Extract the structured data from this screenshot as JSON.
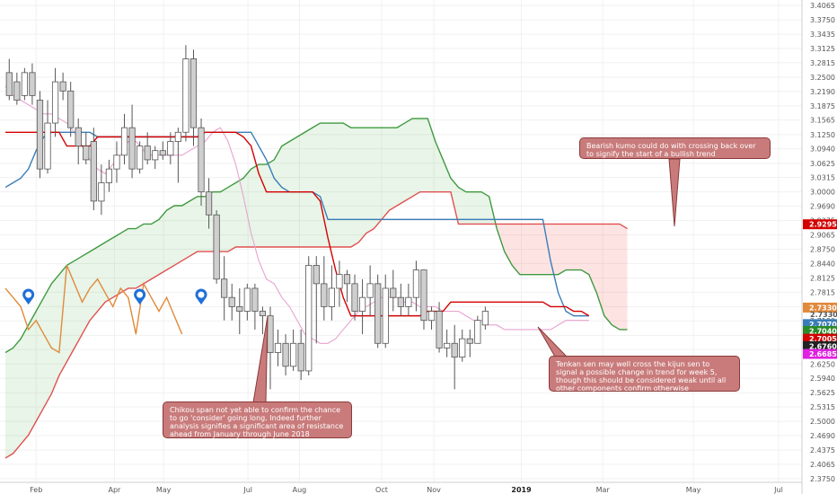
{
  "chart_data": {
    "type": "candlestick",
    "x_ticks": [
      "Feb",
      "Apr",
      "May",
      "Jul",
      "Aug",
      "Oct",
      "Nov",
      "2019",
      "Mar",
      "May",
      "Jul"
    ],
    "y_ticks": [
      "3.4065",
      "3.3750",
      "3.3435",
      "3.3125",
      "3.2815",
      "3.2500",
      "3.2190",
      "3.1875",
      "3.1565",
      "3.1250",
      "3.0940",
      "3.0625",
      "3.0315",
      "3.0000",
      "2.9690",
      "2.9375",
      "2.9065",
      "2.8750",
      "2.8440",
      "2.8125",
      "2.7815",
      "2.7500",
      "2.7190",
      "2.6875",
      "2.6565",
      "2.6250",
      "2.5940",
      "2.5625",
      "2.5315",
      "2.5000",
      "2.4690",
      "2.4375",
      "2.4065",
      "2.3750"
    ],
    "ylim": [
      2.375,
      3.4065
    ],
    "series": [
      {
        "key": "kijun",
        "color": "#d40000",
        "values": [
          3.13,
          3.13,
          3.13,
          3.13,
          3.13,
          3.13,
          3.13,
          3.13,
          3.1,
          3.1,
          3.1,
          3.1,
          3.12,
          3.12,
          3.12,
          3.12,
          3.12,
          3.12,
          3.12,
          3.12,
          3.12,
          3.12,
          3.12,
          3.12,
          3.12,
          3.12,
          3.13,
          3.13,
          3.13,
          3.13,
          3.13,
          3.12,
          3.1,
          3.04,
          3.0,
          3.0,
          3.0,
          3.0,
          3.0,
          3.0,
          3.0,
          2.98,
          2.9,
          2.83,
          2.77,
          2.73,
          2.73,
          2.73,
          2.73,
          2.73,
          2.73,
          2.73,
          2.73,
          2.73,
          2.73,
          2.74,
          2.74,
          2.74,
          2.76,
          2.76,
          2.76,
          2.76,
          2.76,
          2.76,
          2.76,
          2.76,
          2.76,
          2.76,
          2.76,
          2.76,
          2.76,
          2.75,
          2.75,
          2.75,
          2.74,
          2.74,
          2.73
        ]
      },
      {
        "key": "tenkan",
        "color": "#3a7db8",
        "values": [
          3.01,
          3.02,
          3.03,
          3.05,
          3.09,
          3.12,
          3.13,
          3.13,
          3.13,
          3.13,
          3.13,
          3.13,
          3.12,
          3.12,
          3.12,
          3.12,
          3.12,
          3.12,
          3.12,
          3.12,
          3.12,
          3.12,
          3.12,
          3.12,
          3.12,
          3.12,
          3.13,
          3.13,
          3.13,
          3.13,
          3.13,
          3.13,
          3.13,
          3.1,
          3.07,
          3.03,
          3.01,
          3.0,
          3.0,
          3.0,
          3.0,
          2.99,
          2.94,
          2.94,
          2.94,
          2.94,
          2.94,
          2.94,
          2.94,
          2.94,
          2.94,
          2.94,
          2.94,
          2.94,
          2.94,
          2.94,
          2.94,
          2.94,
          2.94,
          2.94,
          2.94,
          2.94,
          2.94,
          2.94,
          2.94,
          2.94,
          2.94,
          2.94,
          2.94,
          2.94,
          2.94,
          2.85,
          2.78,
          2.74,
          2.73,
          2.73,
          2.73
        ]
      },
      {
        "key": "ma",
        "color": "#e8a3cf",
        "values": [
          3.23,
          3.21,
          3.2,
          3.19,
          3.18,
          3.17,
          3.17,
          3.16,
          3.15,
          3.13,
          3.1,
          3.07,
          3.05,
          3.04,
          3.06,
          3.08,
          3.11,
          3.11,
          3.09,
          3.08,
          3.08,
          3.08,
          3.08,
          3.08,
          3.09,
          3.1,
          3.11,
          3.13,
          3.14,
          3.11,
          3.06,
          2.99,
          2.91,
          2.85,
          2.81,
          2.8,
          2.77,
          2.75,
          2.72,
          2.69,
          2.68,
          2.67,
          2.67,
          2.68,
          2.7,
          2.72,
          2.74,
          2.75,
          2.76,
          2.77,
          2.77,
          2.77,
          2.76,
          2.76,
          2.75,
          2.75,
          2.75,
          2.74,
          2.74,
          2.74,
          2.73,
          2.72,
          2.72,
          2.71,
          2.71,
          2.7,
          2.7,
          2.7,
          2.7,
          2.7,
          2.7,
          2.7,
          2.71,
          2.72,
          2.72,
          2.72,
          2.72
        ]
      },
      {
        "key": "chikou",
        "color": "#e08a3c",
        "values": [
          2.79,
          2.77,
          2.75,
          2.7,
          2.72,
          2.69,
          2.66,
          2.65,
          2.84,
          2.8,
          2.76,
          2.79,
          2.81,
          2.78,
          2.75,
          2.79,
          2.77,
          2.69,
          2.8,
          2.77,
          2.74,
          2.77,
          2.73,
          2.69
        ]
      },
      {
        "key": "span_a",
        "color": "#3f9a3f",
        "values": [
          2.65,
          2.66,
          2.68,
          2.71,
          2.74,
          2.77,
          2.8,
          2.82,
          2.84,
          2.85,
          2.86,
          2.87,
          2.88,
          2.89,
          2.9,
          2.91,
          2.92,
          2.92,
          2.93,
          2.93,
          2.94,
          2.96,
          2.97,
          2.97,
          2.98,
          2.99,
          2.99,
          3.0,
          3.0,
          3.01,
          3.02,
          3.03,
          3.05,
          3.06,
          3.06,
          3.07,
          3.1,
          3.11,
          3.12,
          3.13,
          3.14,
          3.15,
          3.15,
          3.15,
          3.15,
          3.14,
          3.14,
          3.14,
          3.14,
          3.14,
          3.14,
          3.14,
          3.15,
          3.16,
          3.16,
          3.16,
          3.11,
          3.07,
          3.03,
          3.01,
          3.0,
          3.0,
          3.0,
          2.99,
          2.92,
          2.87,
          2.84,
          2.82,
          2.82,
          2.82,
          2.82,
          2.82,
          2.82,
          2.83,
          2.83,
          2.83,
          2.82,
          2.78,
          2.73,
          2.71,
          2.7,
          2.7
        ]
      },
      {
        "key": "span_b",
        "color": "#e05050",
        "values": [
          2.42,
          2.43,
          2.45,
          2.47,
          2.5,
          2.53,
          2.56,
          2.6,
          2.63,
          2.66,
          2.69,
          2.72,
          2.74,
          2.76,
          2.77,
          2.78,
          2.79,
          2.79,
          2.8,
          2.81,
          2.82,
          2.83,
          2.84,
          2.85,
          2.86,
          2.87,
          2.87,
          2.87,
          2.87,
          2.87,
          2.88,
          2.88,
          2.88,
          2.88,
          2.88,
          2.88,
          2.88,
          2.88,
          2.88,
          2.88,
          2.88,
          2.88,
          2.88,
          2.88,
          2.88,
          2.88,
          2.89,
          2.91,
          2.92,
          2.94,
          2.96,
          2.97,
          2.98,
          2.99,
          3.0,
          3.0,
          3.0,
          3.0,
          3.0,
          2.93,
          2.93,
          2.93,
          2.93,
          2.93,
          2.93,
          2.93,
          2.93,
          2.93,
          2.93,
          2.93,
          2.93,
          2.93,
          2.93,
          2.93,
          2.93,
          2.93,
          2.93,
          2.93,
          2.93,
          2.93,
          2.93,
          2.92
        ]
      }
    ],
    "candles": [
      [
        3.26,
        3.21,
        3.29,
        3.2
      ],
      [
        3.24,
        3.2,
        3.26,
        3.19
      ],
      [
        3.21,
        3.26,
        3.27,
        3.2
      ],
      [
        3.26,
        3.21,
        3.28,
        3.19
      ],
      [
        3.2,
        3.05,
        3.22,
        3.03
      ],
      [
        3.05,
        3.15,
        3.2,
        3.04
      ],
      [
        3.15,
        3.24,
        3.27,
        3.12
      ],
      [
        3.24,
        3.22,
        3.26,
        3.2
      ],
      [
        3.22,
        3.14,
        3.24,
        3.12
      ],
      [
        3.14,
        3.1,
        3.16,
        3.06
      ],
      [
        3.1,
        3.07,
        3.13,
        3.06
      ],
      [
        3.11,
        2.98,
        3.14,
        2.96
      ],
      [
        2.98,
        3.02,
        3.06,
        2.95
      ],
      [
        3.02,
        3.05,
        3.07,
        3.0
      ],
      [
        3.05,
        3.08,
        3.11,
        3.02
      ],
      [
        3.08,
        3.14,
        3.17,
        3.06
      ],
      [
        3.14,
        3.05,
        3.19,
        3.03
      ],
      [
        3.05,
        3.1,
        3.11,
        3.04
      ],
      [
        3.1,
        3.07,
        3.13,
        3.06
      ],
      [
        3.07,
        3.09,
        3.1,
        3.05
      ],
      [
        3.09,
        3.08,
        3.11,
        3.07
      ],
      [
        3.08,
        3.11,
        3.13,
        3.06
      ],
      [
        3.11,
        3.13,
        3.14,
        3.02
      ],
      [
        3.13,
        3.29,
        3.32,
        3.11
      ],
      [
        3.29,
        3.14,
        3.31,
        3.1
      ],
      [
        3.14,
        3.0,
        3.16,
        2.97
      ],
      [
        3.0,
        2.95,
        3.03,
        2.92
      ],
      [
        2.95,
        2.81,
        2.96,
        2.8
      ],
      [
        2.81,
        2.77,
        2.86,
        2.72
      ],
      [
        2.77,
        2.75,
        2.8,
        2.72
      ],
      [
        2.75,
        2.74,
        2.79,
        2.69
      ],
      [
        2.74,
        2.79,
        2.8,
        2.72
      ],
      [
        2.79,
        2.74,
        2.8,
        2.7
      ],
      [
        2.74,
        2.73,
        2.75,
        2.69
      ],
      [
        2.73,
        2.65,
        2.75,
        2.57
      ],
      [
        2.65,
        2.67,
        2.7,
        2.62
      ],
      [
        2.67,
        2.62,
        2.69,
        2.6
      ],
      [
        2.62,
        2.67,
        2.7,
        2.61
      ],
      [
        2.67,
        2.61,
        2.7,
        2.59
      ],
      [
        2.61,
        2.84,
        2.86,
        2.6
      ],
      [
        2.84,
        2.8,
        2.86,
        2.67
      ],
      [
        2.8,
        2.75,
        2.86,
        2.72
      ],
      [
        2.75,
        2.79,
        2.84,
        2.72
      ],
      [
        2.79,
        2.82,
        2.85,
        2.75
      ],
      [
        2.82,
        2.8,
        2.83,
        2.76
      ],
      [
        2.8,
        2.74,
        2.82,
        2.72
      ],
      [
        2.74,
        2.77,
        2.81,
        2.69
      ],
      [
        2.77,
        2.8,
        2.84,
        2.73
      ],
      [
        2.8,
        2.67,
        2.82,
        2.66
      ],
      [
        2.67,
        2.79,
        2.82,
        2.66
      ],
      [
        2.79,
        2.77,
        2.83,
        2.74
      ],
      [
        2.77,
        2.75,
        2.8,
        2.73
      ],
      [
        2.75,
        2.77,
        2.8,
        2.73
      ],
      [
        2.77,
        2.83,
        2.85,
        2.74
      ],
      [
        2.83,
        2.72,
        2.83,
        2.7
      ],
      [
        2.72,
        2.74,
        2.75,
        2.7
      ],
      [
        2.74,
        2.66,
        2.76,
        2.65
      ],
      [
        2.66,
        2.67,
        2.7,
        2.64
      ],
      [
        2.67,
        2.64,
        2.71,
        2.57
      ],
      [
        2.64,
        2.68,
        2.7,
        2.63
      ],
      [
        2.68,
        2.67,
        2.7,
        2.64
      ],
      [
        2.67,
        2.72,
        2.73,
        2.67
      ],
      [
        2.71,
        2.74,
        2.75,
        2.7
      ]
    ],
    "markers": [
      {
        "label": "E"
      },
      {
        "label": "E"
      },
      {
        "label": "E"
      }
    ],
    "price_labels": [
      {
        "value": "2.9295",
        "y": 2.9295,
        "color": "#d40000"
      },
      {
        "value": "2.7330",
        "y": 2.748,
        "color": "#e08a3c"
      },
      {
        "value": "2.7330",
        "y": 2.733,
        "color": "#222222",
        "plain": true
      },
      {
        "value": "2.7070",
        "y": 2.712,
        "color": "#3a7db8"
      },
      {
        "value": "2.7040",
        "y": 2.697,
        "color": "#2a8a2a"
      },
      {
        "value": "2.7005",
        "y": 2.68,
        "color": "#d40000"
      },
      {
        "value": "2.6760",
        "y": 2.664,
        "color": "#222222"
      },
      {
        "value": "2.6685",
        "y": 2.647,
        "color": "#e020e0"
      }
    ],
    "annotations": [
      {
        "key": "bearish",
        "text": "Bearish kumo could do with crossing back over to signify the start of a bullish trend"
      },
      {
        "key": "tenkan",
        "text": "Tenkan sen may well cross the kijun sen to signal a possible change in trend for week 5, though this should be considered weak until all other components confirm otherwise"
      },
      {
        "key": "chikou",
        "text": "Chikou span not yet able to confirm the chance to go 'consider' going long. Indeed further analysis signifies a significant area of resistance ahead from January through June 2018"
      }
    ]
  }
}
